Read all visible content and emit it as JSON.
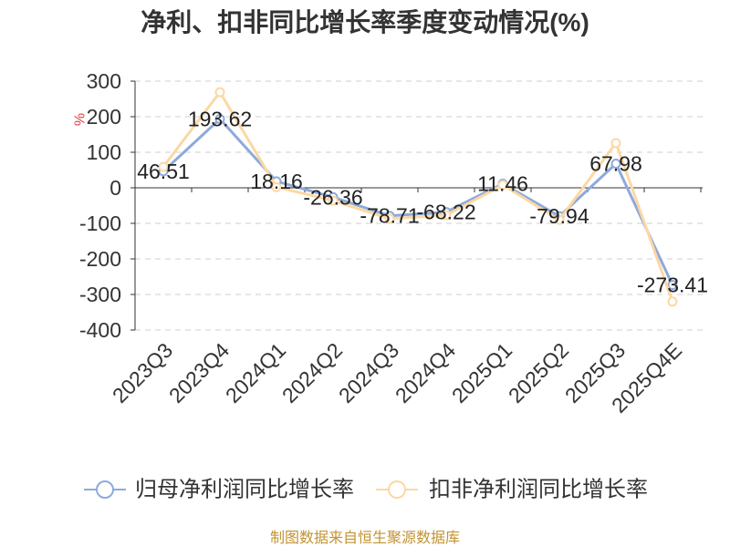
{
  "source": "制图数据来自恒生聚源数据库",
  "colors": {
    "source_text": "#c29332",
    "ylabel": "#e0413a"
  },
  "chart_data": {
    "type": "line",
    "title": "净利、扣非同比增长率季度变动情况(%)",
    "xlabel": "",
    "ylabel": "%",
    "categories": [
      "2023Q3",
      "2023Q4",
      "2024Q1",
      "2024Q2",
      "2024Q3",
      "2024Q4",
      "2025Q1",
      "2025Q2",
      "2025Q3",
      "2025Q4E"
    ],
    "ylim": [
      -400,
      300
    ],
    "yticks": [
      300,
      200,
      100,
      0,
      -100,
      -200,
      -300,
      -400
    ],
    "grid": true,
    "legend_position": "bottom",
    "series": [
      {
        "name": "归母净利润同比增长率",
        "color": "#8eaadb",
        "show_labels": true,
        "values": [
          46.51,
          193.62,
          18.16,
          -26.36,
          -78.71,
          -68.22,
          11.46,
          -79.94,
          67.98,
          -273.41
        ]
      },
      {
        "name": "扣非净利润同比增长率",
        "color": "#fcd8a2",
        "show_labels": false,
        "values": [
          59,
          269,
          2,
          -36,
          -87,
          -77,
          8,
          -90,
          126,
          -320
        ]
      }
    ]
  }
}
